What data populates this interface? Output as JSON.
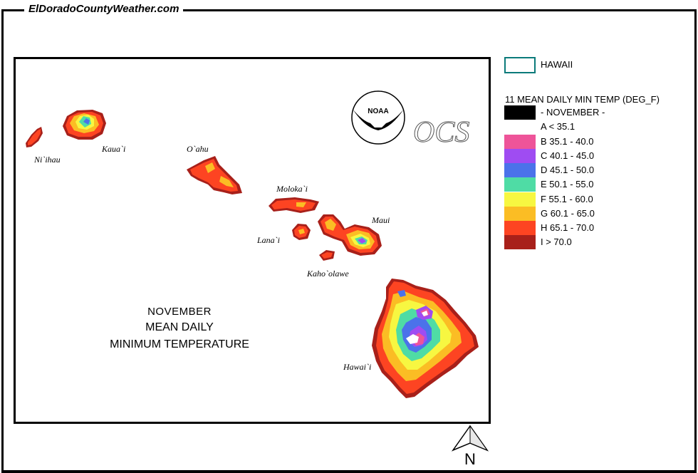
{
  "site": {
    "title": "ElDoradoCountyWeather.com"
  },
  "map": {
    "islands": [
      {
        "id": "niihau",
        "label": "Ni`ihau"
      },
      {
        "id": "kauai",
        "label": "Kaua`i"
      },
      {
        "id": "oahu",
        "label": "O`ahu"
      },
      {
        "id": "molokai",
        "label": "Moloka`i"
      },
      {
        "id": "lanai",
        "label": "Lana`i"
      },
      {
        "id": "maui",
        "label": "Maui"
      },
      {
        "id": "kahoolawe",
        "label": "Kaho`olawe"
      },
      {
        "id": "hawaii",
        "label": "Hawai`i"
      }
    ],
    "title_month": "NOVEMBER",
    "title_line1": "MEAN DAILY",
    "title_line2": "MINIMUM TEMPERATURE",
    "noaa_logo_text": "NOAA",
    "ocs_logo_text": "OCS"
  },
  "legend": {
    "state": "HAWAII",
    "title": "11 MEAN DAILY MIN TEMP (DEG_F)",
    "items": [
      {
        "label": "- NOVEMBER -",
        "color": "#000000"
      },
      {
        "label": "A < 35.1",
        "color": "#ffffff"
      },
      {
        "label": "B 35.1 - 40.0",
        "color": "#ee5499"
      },
      {
        "label": "C 40.1 - 45.0",
        "color": "#9f4cf2"
      },
      {
        "label": "D 45.1 - 50.0",
        "color": "#4b72ea"
      },
      {
        "label": "E 50.1 - 55.0",
        "color": "#4fdca5"
      },
      {
        "label": "F 55.1 - 60.0",
        "color": "#f7f741"
      },
      {
        "label": "G 60.1 - 65.0",
        "color": "#fbbd24"
      },
      {
        "label": "H 65.1 - 70.0",
        "color": "#fd4422"
      },
      {
        "label": "I > 70.0",
        "color": "#a8201a"
      }
    ]
  },
  "compass": {
    "label": "N"
  }
}
